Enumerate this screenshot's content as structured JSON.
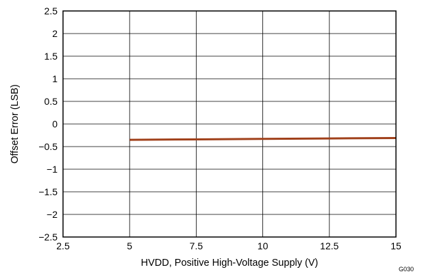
{
  "chart_data": {
    "type": "line",
    "xlabel": "HVDD, Positive High-Voltage Supply (V)",
    "ylabel": "Offset Error (LSB)",
    "xlim": [
      2.5,
      15
    ],
    "ylim": [
      -2.5,
      2.5
    ],
    "x_ticks": [
      2.5,
      5,
      7.5,
      10,
      12.5,
      15
    ],
    "x_tick_labels": [
      "2.5",
      "5",
      "7.5",
      "10",
      "12.5",
      "15"
    ],
    "y_ticks": [
      2.5,
      2,
      1.5,
      1,
      0.5,
      0,
      -0.5,
      -1,
      -1.5,
      -2,
      -2.5
    ],
    "y_tick_labels": [
      "2.5",
      "2",
      "1.5",
      "1",
      "0.5",
      "0",
      "−0.5",
      "−1",
      "−1.5",
      "−2",
      "−2.5"
    ],
    "grid": true,
    "series": [
      {
        "color": "#a0401a",
        "x": [
          5,
          7.5,
          10,
          12.5,
          15
        ],
        "y": [
          -0.35,
          -0.34,
          -0.33,
          -0.32,
          -0.31
        ]
      }
    ],
    "annotation": "G030"
  }
}
